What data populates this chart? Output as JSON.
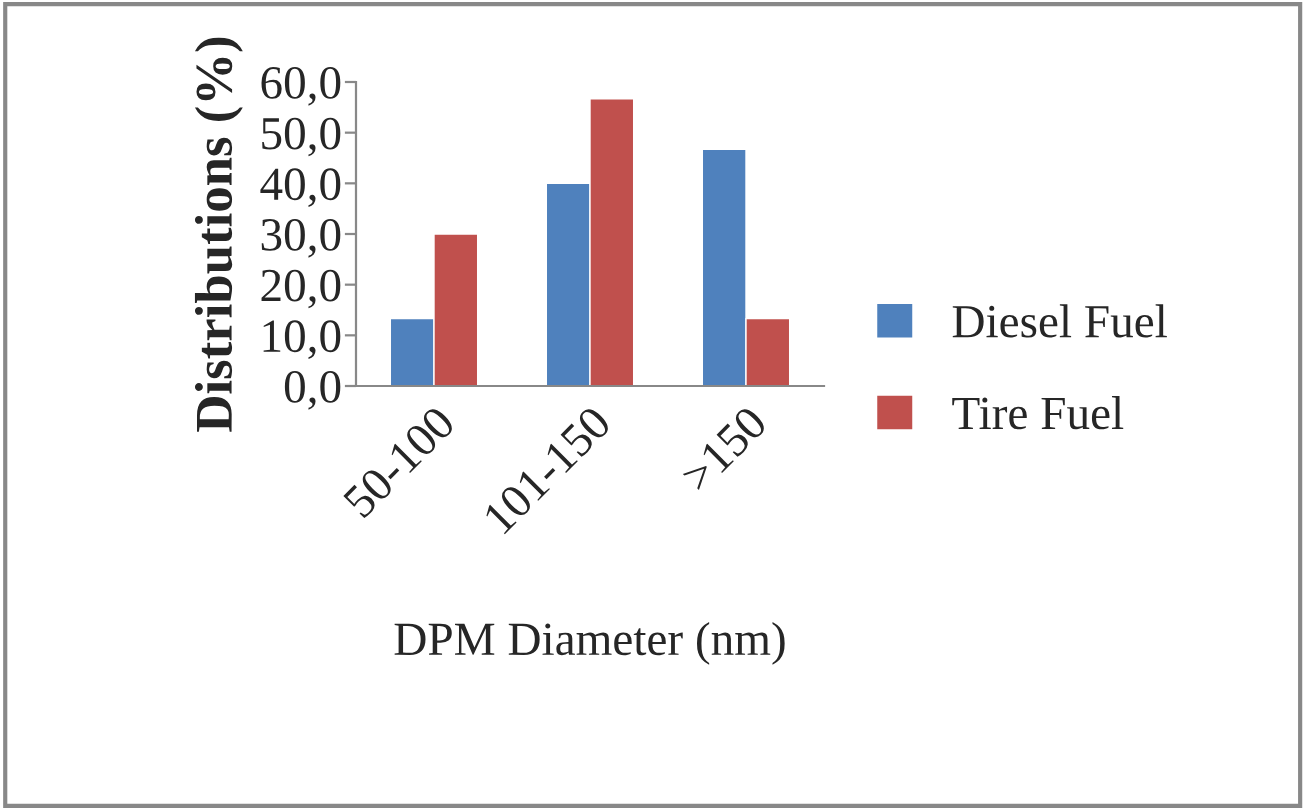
{
  "chart_data": {
    "type": "bar",
    "xlabel": "DPM Diameter (nm)",
    "ylabel": "Distributions (%)",
    "categories": [
      "50-100",
      "101-150",
      ">150"
    ],
    "series": [
      {
        "name": "Diesel Fuel",
        "color": "#4f81bd",
        "values": [
          13.3,
          40.0,
          46.7
        ]
      },
      {
        "name": "Tire Fuel",
        "color": "#c0504d",
        "values": [
          30.0,
          56.7,
          13.3
        ]
      }
    ],
    "ylim": [
      0,
      60
    ],
    "yticks": [
      {
        "value": 0,
        "label": "0,0"
      },
      {
        "value": 10,
        "label": "10,0"
      },
      {
        "value": 20,
        "label": "20,0"
      },
      {
        "value": 30,
        "label": "30,0"
      },
      {
        "value": 40,
        "label": "40,0"
      },
      {
        "value": 50,
        "label": "50,0"
      },
      {
        "value": 60,
        "label": "60,0"
      }
    ],
    "grid": false,
    "legend": "right"
  }
}
